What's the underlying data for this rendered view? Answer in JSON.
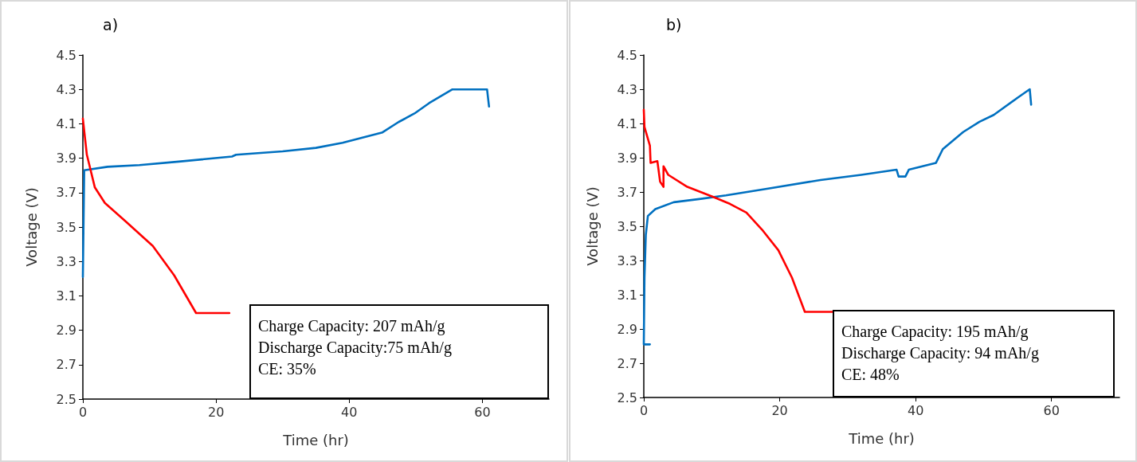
{
  "chart_data": [
    {
      "type": "line",
      "title": "a)",
      "xlabel": "Time (hr)",
      "ylabel": "Voltage (V)",
      "xlim": [
        0,
        70
      ],
      "xticks": [
        0,
        20,
        40,
        60
      ],
      "ylim": [
        2.5,
        4.5
      ],
      "yticks": [
        2.5,
        2.7,
        2.9,
        3.1,
        3.3,
        3.5,
        3.7,
        3.9,
        4.1,
        4.3,
        4.5
      ],
      "marker": "none",
      "annotations": [
        "Charge Capacity: 207 mAh/g",
        "Discharge Capacity:75 mAh/g",
        "CE: 35%"
      ],
      "series": [
        {
          "color": "#0070c0",
          "x": [
            0,
            0.2,
            3.7,
            8.5,
            14.4,
            22.4,
            23,
            30,
            35,
            39,
            42,
            45,
            47.4,
            49.8,
            52,
            55.5,
            60.7,
            61
          ],
          "values": [
            3.21,
            3.83,
            3.85,
            3.86,
            3.88,
            3.91,
            3.92,
            3.94,
            3.96,
            3.99,
            4.02,
            4.05,
            4.11,
            4.16,
            4.22,
            4.3,
            4.3,
            4.2
          ]
        },
        {
          "color": "#ff0000",
          "x": [
            0,
            0.6,
            1.8,
            3.3,
            6.5,
            10.5,
            13.7,
            17,
            22
          ],
          "values": [
            4.13,
            3.92,
            3.73,
            3.64,
            3.53,
            3.39,
            3.22,
            3.0,
            3.0
          ]
        }
      ]
    },
    {
      "type": "line",
      "title": "b)",
      "xlabel": "Time (hr)",
      "ylabel": "Voltage (V)",
      "xlim": [
        0,
        70
      ],
      "xticks": [
        0,
        20,
        40,
        60
      ],
      "ylim": [
        2.5,
        4.5
      ],
      "yticks": [
        2.5,
        2.7,
        2.9,
        3.1,
        3.3,
        3.5,
        3.7,
        3.9,
        4.1,
        4.3,
        4.5
      ],
      "marker": "none",
      "annotations": [
        "Charge Capacity: 195 mAh/g",
        "Discharge Capacity: 94 mAh/g",
        "CE: 48%"
      ],
      "series": [
        {
          "color": "#0070c0",
          "x": [
            0.9,
            0,
            0.1,
            0.3,
            0.6,
            1.7,
            4.4,
            8.4,
            12.1,
            18.3,
            26,
            32,
            37.2,
            37.5,
            38.5,
            39,
            43,
            44,
            47,
            49.4,
            51.5,
            55,
            56.8,
            57
          ],
          "values": [
            2.81,
            2.81,
            3.2,
            3.45,
            3.56,
            3.6,
            3.64,
            3.66,
            3.68,
            3.72,
            3.77,
            3.8,
            3.83,
            3.79,
            3.79,
            3.83,
            3.87,
            3.95,
            4.05,
            4.11,
            4.15,
            4.25,
            4.3,
            4.21
          ]
        },
        {
          "color": "#ff0000",
          "x": [
            0,
            0.1,
            0.9,
            1,
            2,
            2.4,
            2.9,
            2.9,
            3.6,
            6.4,
            10.3,
            12.7,
            15.1,
            17.4,
            19.8,
            21.8,
            23.7,
            28
          ],
          "values": [
            4.18,
            4.08,
            3.97,
            3.87,
            3.88,
            3.76,
            3.73,
            3.85,
            3.8,
            3.73,
            3.67,
            3.63,
            3.58,
            3.48,
            3.36,
            3.2,
            3.0,
            3.0
          ]
        }
      ]
    }
  ]
}
